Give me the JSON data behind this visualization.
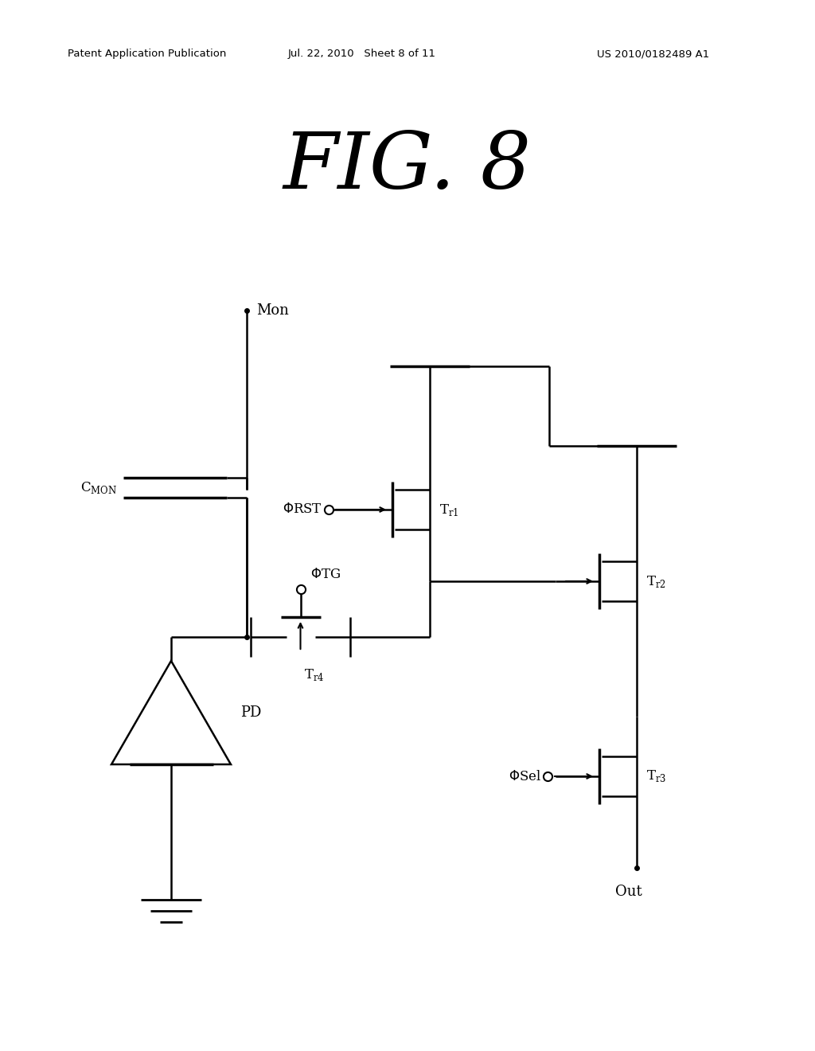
{
  "bg_color": "#ffffff",
  "header_left": "Patent Application Publication",
  "header_mid": "Jul. 22, 2010   Sheet 8 of 11",
  "header_right": "US 2010/0182489 A1",
  "fig_label": "FIG. 8",
  "lw": 1.8
}
